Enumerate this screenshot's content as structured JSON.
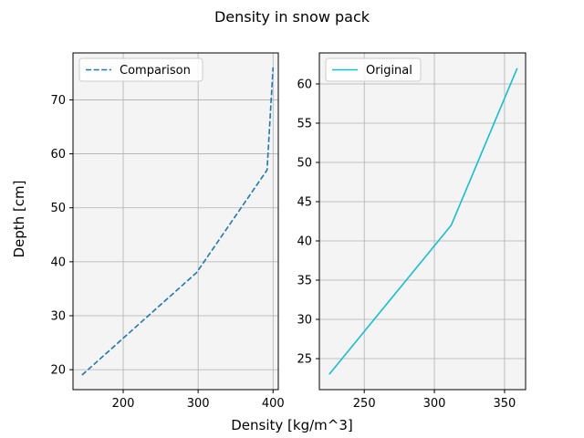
{
  "figure": {
    "suptitle": "Density in snow pack",
    "supxlabel": "Density [kg/m^3]",
    "supylabel": "Depth [cm]",
    "background": "#ffffff",
    "axes_background": "#f4f4f4"
  },
  "chart_data": [
    {
      "type": "line",
      "title": "",
      "xlabel": "",
      "ylabel": "",
      "xlim": [
        133,
        407
      ],
      "ylim": [
        16.3,
        78.7
      ],
      "xticks": [
        200,
        300,
        400
      ],
      "yticks": [
        20,
        30,
        40,
        50,
        60,
        70
      ],
      "grid": true,
      "legend": "upper-left",
      "series": [
        {
          "name": "Comparison",
          "color": "#1f77b4",
          "linestyle": "dashed",
          "x": [
            145,
            298,
            392,
            400
          ],
          "y": [
            19,
            38,
            57,
            76
          ]
        }
      ]
    },
    {
      "type": "line",
      "title": "",
      "xlabel": "",
      "ylabel": "",
      "xlim": [
        218,
        365
      ],
      "ylim": [
        21.05,
        63.95
      ],
      "xticks": [
        250,
        300,
        350
      ],
      "yticks": [
        25,
        30,
        35,
        40,
        45,
        50,
        55,
        60
      ],
      "grid": true,
      "legend": "upper-left",
      "series": [
        {
          "name": "Original",
          "color": "#17becf",
          "linestyle": "solid",
          "x": [
            225,
            312,
            359
          ],
          "y": [
            23,
            42,
            62
          ]
        }
      ]
    }
  ]
}
